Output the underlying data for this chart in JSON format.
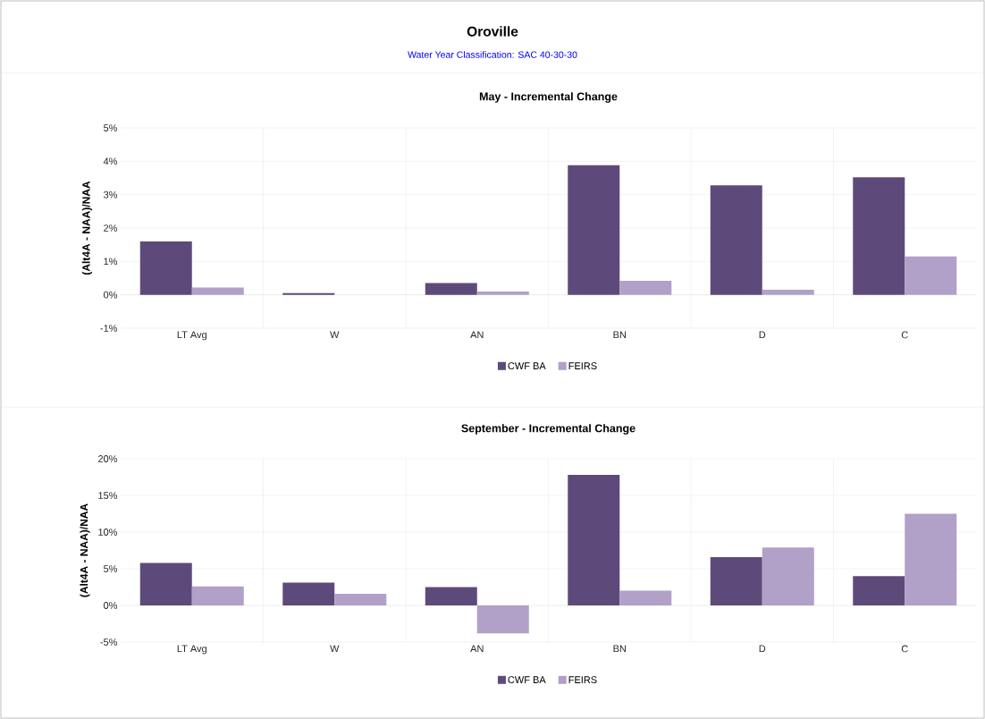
{
  "chart_data": [
    {
      "type": "bar",
      "title": "May - Incremental Change",
      "ylabel": "(Alt4A - NAA)/NAA",
      "annotations": [
        "Oroville",
        "Water Year Classification: SAC 40-30-30"
      ],
      "categories": [
        "LT Avg",
        "W",
        "AN",
        "BN",
        "D",
        "C"
      ],
      "series": [
        {
          "name": "CWF BA",
          "color": "#5e4a7a",
          "values": [
            1.6,
            0.05,
            0.35,
            3.88,
            3.28,
            3.52
          ]
        },
        {
          "name": "FEIRS",
          "color": "#b1a0c8",
          "values": [
            0.22,
            0.0,
            0.1,
            0.42,
            0.15,
            1.15
          ]
        }
      ],
      "ylim": [
        -1,
        5
      ],
      "yticks": [
        {
          "value": -1,
          "label": "-1%"
        },
        {
          "value": 0,
          "label": "0%"
        },
        {
          "value": 1,
          "label": "1%"
        },
        {
          "value": 2,
          "label": "2%"
        },
        {
          "value": 3,
          "label": "3%"
        },
        {
          "value": 4,
          "label": "4%"
        },
        {
          "value": 5,
          "label": "5%"
        }
      ],
      "grid": true,
      "legend": "bottom"
    },
    {
      "type": "bar",
      "title": "September - Incremental Change",
      "ylabel": "(Alt4A - NAA)/NAA",
      "categories": [
        "LT Avg",
        "W",
        "AN",
        "BN",
        "D",
        "C"
      ],
      "series": [
        {
          "name": "CWF BA",
          "color": "#5e4a7a",
          "values": [
            5.8,
            3.1,
            2.5,
            17.8,
            6.6,
            4.0
          ]
        },
        {
          "name": "FEIRS",
          "color": "#b1a0c8",
          "values": [
            2.6,
            1.6,
            -3.8,
            2.0,
            7.9,
            12.5
          ]
        }
      ],
      "ylim": [
        -5,
        20
      ],
      "yticks": [
        {
          "value": -5,
          "label": "-5%"
        },
        {
          "value": 0,
          "label": "0%"
        },
        {
          "value": 5,
          "label": "5%"
        },
        {
          "value": 10,
          "label": "10%"
        },
        {
          "value": 15,
          "label": "15%"
        },
        {
          "value": 20,
          "label": "20%"
        }
      ],
      "grid": true,
      "legend": "bottom"
    }
  ]
}
